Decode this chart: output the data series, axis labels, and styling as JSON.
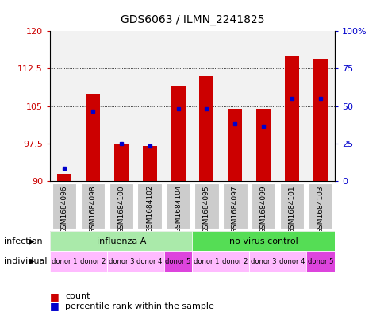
{
  "title": "GDS6063 / ILMN_2241825",
  "samples": [
    "GSM1684096",
    "GSM1684098",
    "GSM1684100",
    "GSM1684102",
    "GSM1684104",
    "GSM1684095",
    "GSM1684097",
    "GSM1684099",
    "GSM1684101",
    "GSM1684103"
  ],
  "bar_tops": [
    91.5,
    107.5,
    97.5,
    97.0,
    109.0,
    111.0,
    104.5,
    104.5,
    115.0,
    114.5
  ],
  "blue_positions": [
    92.5,
    104.0,
    97.5,
    97.0,
    104.5,
    104.5,
    101.5,
    101.0,
    106.5,
    106.5
  ],
  "bar_bottom": 90,
  "ylim_left": [
    90,
    120
  ],
  "ylim_right": [
    0,
    100
  ],
  "yticks_left": [
    90,
    97.5,
    105,
    112.5,
    120
  ],
  "yticks_right": [
    0,
    25,
    50,
    75,
    100
  ],
  "ytick_labels_left": [
    "90",
    "97.5",
    "105",
    "112.5",
    "120"
  ],
  "ytick_labels_right": [
    "0",
    "25",
    "50",
    "75",
    "100%"
  ],
  "bar_color": "#cc0000",
  "blue_color": "#0000cc",
  "infection_groups": [
    {
      "label": "influenza A",
      "start": 0,
      "end": 5,
      "color": "#aaeaaa"
    },
    {
      "label": "no virus control",
      "start": 5,
      "end": 10,
      "color": "#55dd55"
    }
  ],
  "individual_labels": [
    "donor 1",
    "donor 2",
    "donor 3",
    "donor 4",
    "donor 5",
    "donor 1",
    "donor 2",
    "donor 3",
    "donor 4",
    "donor 5"
  ],
  "individual_colors": [
    "#ffbbff",
    "#ffbbff",
    "#ffbbff",
    "#ffbbff",
    "#dd44dd",
    "#ffbbff",
    "#ffbbff",
    "#ffbbff",
    "#ffbbff",
    "#dd44dd"
  ],
  "tick_label_color_left": "#cc0000",
  "tick_label_color_right": "#0000cc",
  "plot_bg": "#f2f2f2",
  "sample_box_color": "#cccccc",
  "legend_count_color": "#cc0000",
  "legend_pct_color": "#0000cc",
  "infection_label": "infection",
  "individual_label": "individual",
  "bar_width": 0.5
}
